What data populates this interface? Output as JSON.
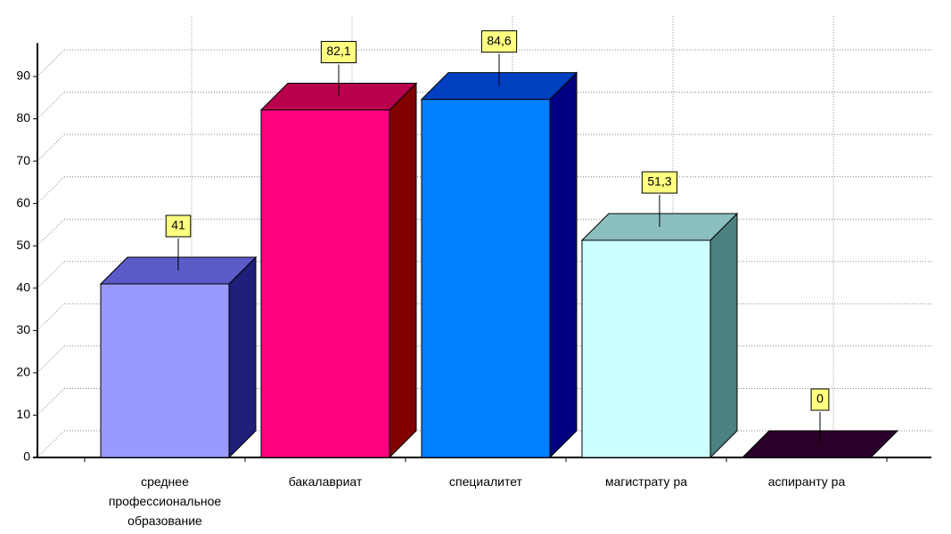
{
  "chart_data": {
    "type": "bar3d",
    "categories": [
      "среднее профессиональное образование",
      "бакалавриат",
      "специалитет",
      "магистрату ра",
      "аспиранту ра"
    ],
    "values": [
      41,
      82.1,
      84.6,
      51.3,
      0
    ],
    "value_labels": [
      "41",
      "82,1",
      "84,6",
      "51,3",
      "0"
    ],
    "colors": [
      "#9999ff",
      "#ff0080",
      "#0080ff",
      "#ccffff",
      "#330033"
    ],
    "side_colors": [
      "#1f1f7a",
      "#800000",
      "#000080",
      "#4d8080",
      "#1a001a"
    ],
    "top_colors": [
      "#5a5ac8",
      "#b8004d",
      "#0040c0",
      "#8bbfbf",
      "#2a0029"
    ],
    "ylim": [
      0,
      100
    ],
    "yticks": [
      0,
      10,
      20,
      30,
      40,
      50,
      60,
      70,
      80,
      90
    ],
    "grid": true
  }
}
